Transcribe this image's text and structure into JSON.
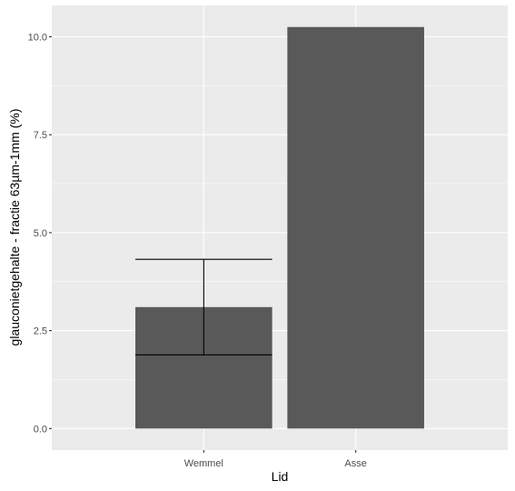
{
  "chart_data": {
    "type": "bar",
    "categories": [
      "Wemmel",
      "Asse"
    ],
    "values": [
      3.1,
      10.25
    ],
    "error_bars": [
      {
        "category": "Wemmel",
        "low": 1.88,
        "high": 4.32
      }
    ],
    "xlabel": "Lid",
    "ylabel": "glauconietgehalte - fractie 63µm-1mm (%)",
    "ylim": [
      -0.55,
      10.8
    ],
    "yticks": [
      0.0,
      2.5,
      5.0,
      7.5,
      10.0
    ],
    "ytick_labels": [
      "0.0",
      "2.5",
      "5.0",
      "7.5",
      "10.0"
    ],
    "grid": true,
    "colors": {
      "panel": "#ebebeb",
      "grid_major": "#ffffff",
      "bar": "#595959",
      "errorbar": "#000000",
      "tick_text": "#4d4d4d",
      "axis_title": "#000000"
    }
  }
}
